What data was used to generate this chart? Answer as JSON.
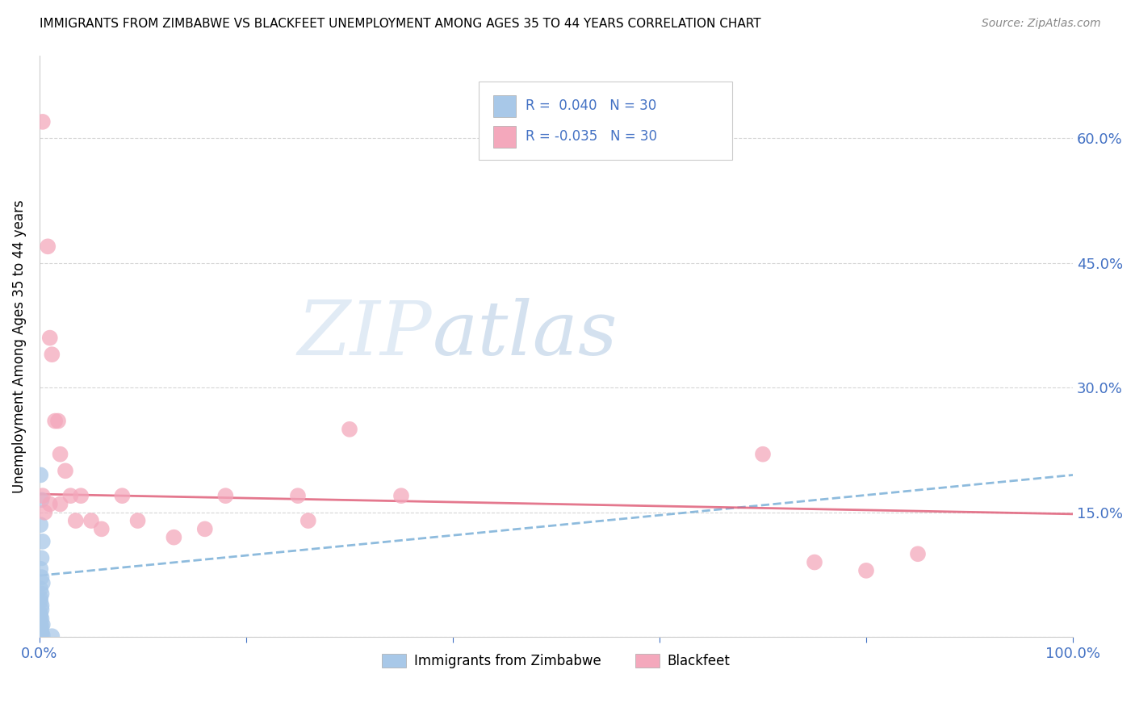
{
  "title": "IMMIGRANTS FROM ZIMBABWE VS BLACKFEET UNEMPLOYMENT AMONG AGES 35 TO 44 YEARS CORRELATION CHART",
  "source": "Source: ZipAtlas.com",
  "xlabel_color": "#4472c4",
  "ylabel": "Unemployment Among Ages 35 to 44 years",
  "xlim": [
    0,
    1.0
  ],
  "ylim": [
    0,
    0.7
  ],
  "x_ticks": [
    0.0,
    0.2,
    0.4,
    0.6,
    0.8,
    1.0
  ],
  "x_tick_labels": [
    "0.0%",
    "",
    "",
    "",
    "",
    "100.0%"
  ],
  "y_ticks_right": [
    0.0,
    0.15,
    0.3,
    0.45,
    0.6
  ],
  "y_tick_labels_right": [
    "",
    "15.0%",
    "30.0%",
    "45.0%",
    "60.0%"
  ],
  "color_blue": "#a8c8e8",
  "color_pink": "#f4a8bc",
  "trendline_blue_color": "#7ab0d8",
  "trendline_pink_color": "#e0607a",
  "watermark_zip": "ZIP",
  "watermark_atlas": "atlas",
  "blue_points_x": [
    0.001,
    0.002,
    0.001,
    0.003,
    0.002,
    0.001,
    0.002,
    0.003,
    0.001,
    0.002,
    0.001,
    0.001,
    0.002,
    0.002,
    0.001,
    0.001,
    0.002,
    0.001,
    0.003,
    0.002,
    0.001,
    0.001,
    0.002,
    0.001,
    0.001,
    0.001,
    0.002,
    0.001,
    0.003,
    0.012
  ],
  "blue_points_y": [
    0.195,
    0.165,
    0.135,
    0.115,
    0.095,
    0.082,
    0.072,
    0.065,
    0.058,
    0.052,
    0.047,
    0.043,
    0.038,
    0.033,
    0.028,
    0.025,
    0.022,
    0.018,
    0.015,
    0.013,
    0.01,
    0.008,
    0.006,
    0.005,
    0.004,
    0.003,
    0.003,
    0.002,
    0.002,
    0.001
  ],
  "pink_points_x": [
    0.003,
    0.008,
    0.01,
    0.012,
    0.015,
    0.018,
    0.02,
    0.025,
    0.03,
    0.035,
    0.04,
    0.05,
    0.06,
    0.08,
    0.095,
    0.13,
    0.16,
    0.18,
    0.25,
    0.26,
    0.3,
    0.35,
    0.7,
    0.75,
    0.8,
    0.85,
    0.01,
    0.02,
    0.003,
    0.005
  ],
  "pink_points_y": [
    0.62,
    0.47,
    0.36,
    0.34,
    0.26,
    0.26,
    0.22,
    0.2,
    0.17,
    0.14,
    0.17,
    0.14,
    0.13,
    0.17,
    0.14,
    0.12,
    0.13,
    0.17,
    0.17,
    0.14,
    0.25,
    0.17,
    0.22,
    0.09,
    0.08,
    0.1,
    0.16,
    0.16,
    0.17,
    0.15
  ],
  "blue_trend_x0": 0.0,
  "blue_trend_x1": 1.0,
  "blue_trend_y0": 0.074,
  "blue_trend_y1": 0.195,
  "pink_trend_x0": 0.0,
  "pink_trend_x1": 1.0,
  "pink_trend_y0": 0.172,
  "pink_trend_y1": 0.148
}
